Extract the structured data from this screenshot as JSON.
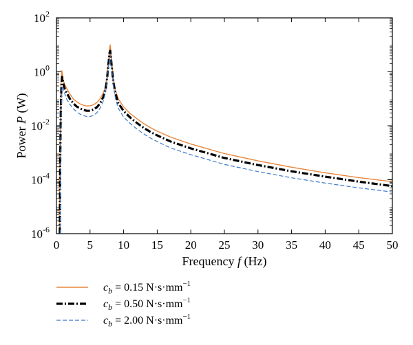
{
  "chart_data": {
    "type": "line",
    "xlabel_prefix": "Frequency ",
    "xlabel_var": "f",
    "xlabel_unit": " (Hz)",
    "ylabel_prefix": "Power ",
    "ylabel_var": "P",
    "ylabel_unit": " (W)",
    "xlim": [
      0,
      50
    ],
    "ylim": [
      1e-06,
      100
    ],
    "yscale": "log",
    "x_ticks": [
      0,
      5,
      10,
      15,
      20,
      25,
      30,
      35,
      40,
      45,
      50
    ],
    "y_ticks": [
      {
        "value": 1e-06,
        "base": "10",
        "exp": "-6"
      },
      {
        "value": 0.0001,
        "base": "10",
        "exp": "-4"
      },
      {
        "value": 0.01,
        "base": "10",
        "exp": "-2"
      },
      {
        "value": 1,
        "base": "10",
        "exp": "0"
      },
      {
        "value": 100,
        "base": "10",
        "exp": "2"
      }
    ],
    "grid": false,
    "legend_position": "bottom",
    "series": [
      {
        "symbol": "c",
        "subscript": "b",
        "value_text": " = 0.15 N·s·mm",
        "unit_exp": "−1",
        "color": "#e8853a",
        "style": "solid",
        "x": [
          0.45,
          0.5,
          0.6,
          0.7,
          0.8,
          0.9,
          1.0,
          1.2,
          1.5,
          2,
          2.5,
          3,
          3.5,
          4,
          4.5,
          5,
          5.5,
          6,
          6.5,
          7,
          7.3,
          7.5,
          7.7,
          7.9,
          8.0,
          8.1,
          8.3,
          8.5,
          8.8,
          9.2,
          10,
          11,
          12,
          13,
          14,
          15,
          17,
          20,
          25,
          30,
          35,
          40,
          45,
          50
        ],
        "y": [
          1e-06,
          0.0003,
          0.05,
          0.5,
          1.1,
          0.8,
          0.5,
          0.35,
          0.25,
          0.15,
          0.1,
          0.078,
          0.065,
          0.058,
          0.054,
          0.055,
          0.06,
          0.072,
          0.1,
          0.17,
          0.3,
          0.6,
          2,
          7,
          10,
          6,
          1.5,
          0.5,
          0.2,
          0.1,
          0.05,
          0.028,
          0.018,
          0.012,
          0.0085,
          0.0063,
          0.0038,
          0.0021,
          0.00093,
          0.0005,
          0.00029,
          0.00018,
          0.00012,
          8.5e-05
        ]
      },
      {
        "symbol": "c",
        "subscript": "b",
        "value_text": " = 0.50 N·s·mm",
        "unit_exp": "−1",
        "color": "#000000",
        "style": "dashdot",
        "x": [
          0.5,
          0.55,
          0.65,
          0.75,
          0.85,
          0.95,
          1.05,
          1.2,
          1.5,
          2,
          2.5,
          3,
          3.5,
          4,
          4.5,
          5,
          5.5,
          6,
          6.5,
          7,
          7.3,
          7.5,
          7.7,
          7.9,
          8.0,
          8.1,
          8.3,
          8.5,
          8.8,
          9.2,
          10,
          11,
          12,
          13,
          14,
          15,
          17,
          20,
          25,
          30,
          35,
          40,
          45,
          50
        ],
        "y": [
          1e-06,
          0.0003,
          0.04,
          0.35,
          0.65,
          0.5,
          0.35,
          0.25,
          0.17,
          0.1,
          0.068,
          0.052,
          0.044,
          0.039,
          0.036,
          0.036,
          0.04,
          0.048,
          0.068,
          0.12,
          0.22,
          0.45,
          1.5,
          5,
          6,
          3.5,
          1,
          0.38,
          0.15,
          0.07,
          0.035,
          0.02,
          0.0126,
          0.0083,
          0.0059,
          0.0044,
          0.0026,
          0.00145,
          0.00064,
          0.00035,
          0.000205,
          0.00013,
          8.5e-05,
          5.8e-05
        ]
      },
      {
        "symbol": "c",
        "subscript": "b",
        "value_text": " = 2.00 N·s·mm",
        "unit_exp": "−1",
        "color": "#3c78c8",
        "style": "dashed",
        "x": [
          0.55,
          0.6,
          0.7,
          0.8,
          0.9,
          1.0,
          1.1,
          1.25,
          1.5,
          2,
          2.5,
          3,
          3.5,
          4,
          4.5,
          5,
          5.5,
          6,
          6.5,
          7,
          7.3,
          7.5,
          7.7,
          7.9,
          8.0,
          8.1,
          8.3,
          8.5,
          8.8,
          9.2,
          10,
          11,
          12,
          13,
          14,
          15,
          17,
          20,
          25,
          30,
          35,
          40,
          45,
          50
        ],
        "y": [
          1e-06,
          0.0002,
          0.03,
          0.2,
          0.3,
          0.25,
          0.2,
          0.15,
          0.1,
          0.062,
          0.043,
          0.033,
          0.027,
          0.024,
          0.022,
          0.022,
          0.024,
          0.03,
          0.045,
          0.085,
          0.17,
          0.35,
          1.2,
          3.5,
          4.5,
          2.8,
          0.8,
          0.28,
          0.1,
          0.045,
          0.021,
          0.012,
          0.0075,
          0.005,
          0.0035,
          0.0026,
          0.0015,
          0.00085,
          0.00037,
          0.0002,
          0.000118,
          7.5e-05,
          5e-05,
          3.5e-05
        ]
      }
    ]
  }
}
